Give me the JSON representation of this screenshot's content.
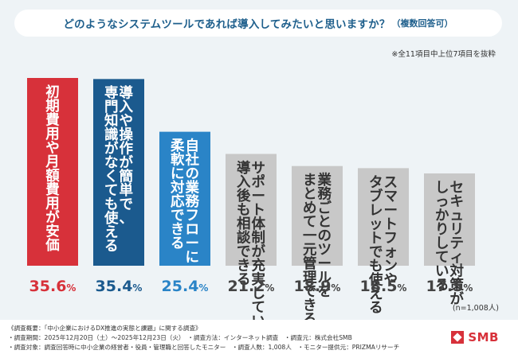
{
  "title": "どのようなシステムツールであれば導入してみたいと思いますか？",
  "title_suffix": "（複数回答可）",
  "note": "※全11項目中上位7項目を抜粋",
  "sample": "(n=1,008人)",
  "chart_data": {
    "type": "bar",
    "unit": "%",
    "categories": [
      "初期費用や月額費用が安価",
      "導入や操作が簡単で、専門知識がなくても使える",
      "自社の業務フローに柔軟に対応できる",
      "サポート体制が充実していて、導入後も相談できる",
      "業務ごとのツールをまとめて一元管理できる",
      "スマートフォンやタブレットでも使える",
      "セキュリティ対策がしっかりしている"
    ],
    "label_lines": [
      [
        "初期費用や月額費用が安価"
      ],
      [
        "導入や操作が簡単で、",
        "専門知識がなくても使える"
      ],
      [
        "自社の業務フローに",
        "柔軟に対応できる"
      ],
      [
        "サポート体制が充実していて、",
        "導入後も相談できる"
      ],
      [
        "業務ごとのツールを",
        "まとめて一元管理できる"
      ],
      [
        "スマートフォンや",
        "タブレットでも使える"
      ],
      [
        "セキュリティ対策が",
        "しっかりしている"
      ]
    ],
    "values": [
      35.6,
      35.4,
      25.4,
      21.2,
      18.9,
      18.5,
      17.5
    ],
    "value_labels": [
      "35.6",
      "35.4",
      "25.4",
      "21.2",
      "18.9",
      "18.5",
      "17.5"
    ],
    "colors": [
      "#d7313a",
      "#1b5a8e",
      "#2a84c7",
      "#c8c8c8",
      "#c8c8c8",
      "#c8c8c8",
      "#c8c8c8"
    ],
    "value_colors": [
      "#d7313a",
      "#1b5a8e",
      "#2a84c7",
      "#444444",
      "#444444",
      "#444444",
      "#444444"
    ],
    "ylim": [
      0,
      35.6
    ]
  },
  "footer": {
    "line1": "《調査概要：「中小企業におけるDX推進の実態と課題」に関する調査》",
    "line2": "・調査期間：2025年12月20日（土）〜2025年12月23日（火）　・調査方法：インターネット調査　・調査元：株式会社SMB",
    "line3": "・調査対象：調査回答時に中小企業の経営者・役員・管理職と回答したモニター　・調査人数：1,008人　・モニター提供元：PRIZMAリサーチ"
  },
  "logo_text": "SMB"
}
